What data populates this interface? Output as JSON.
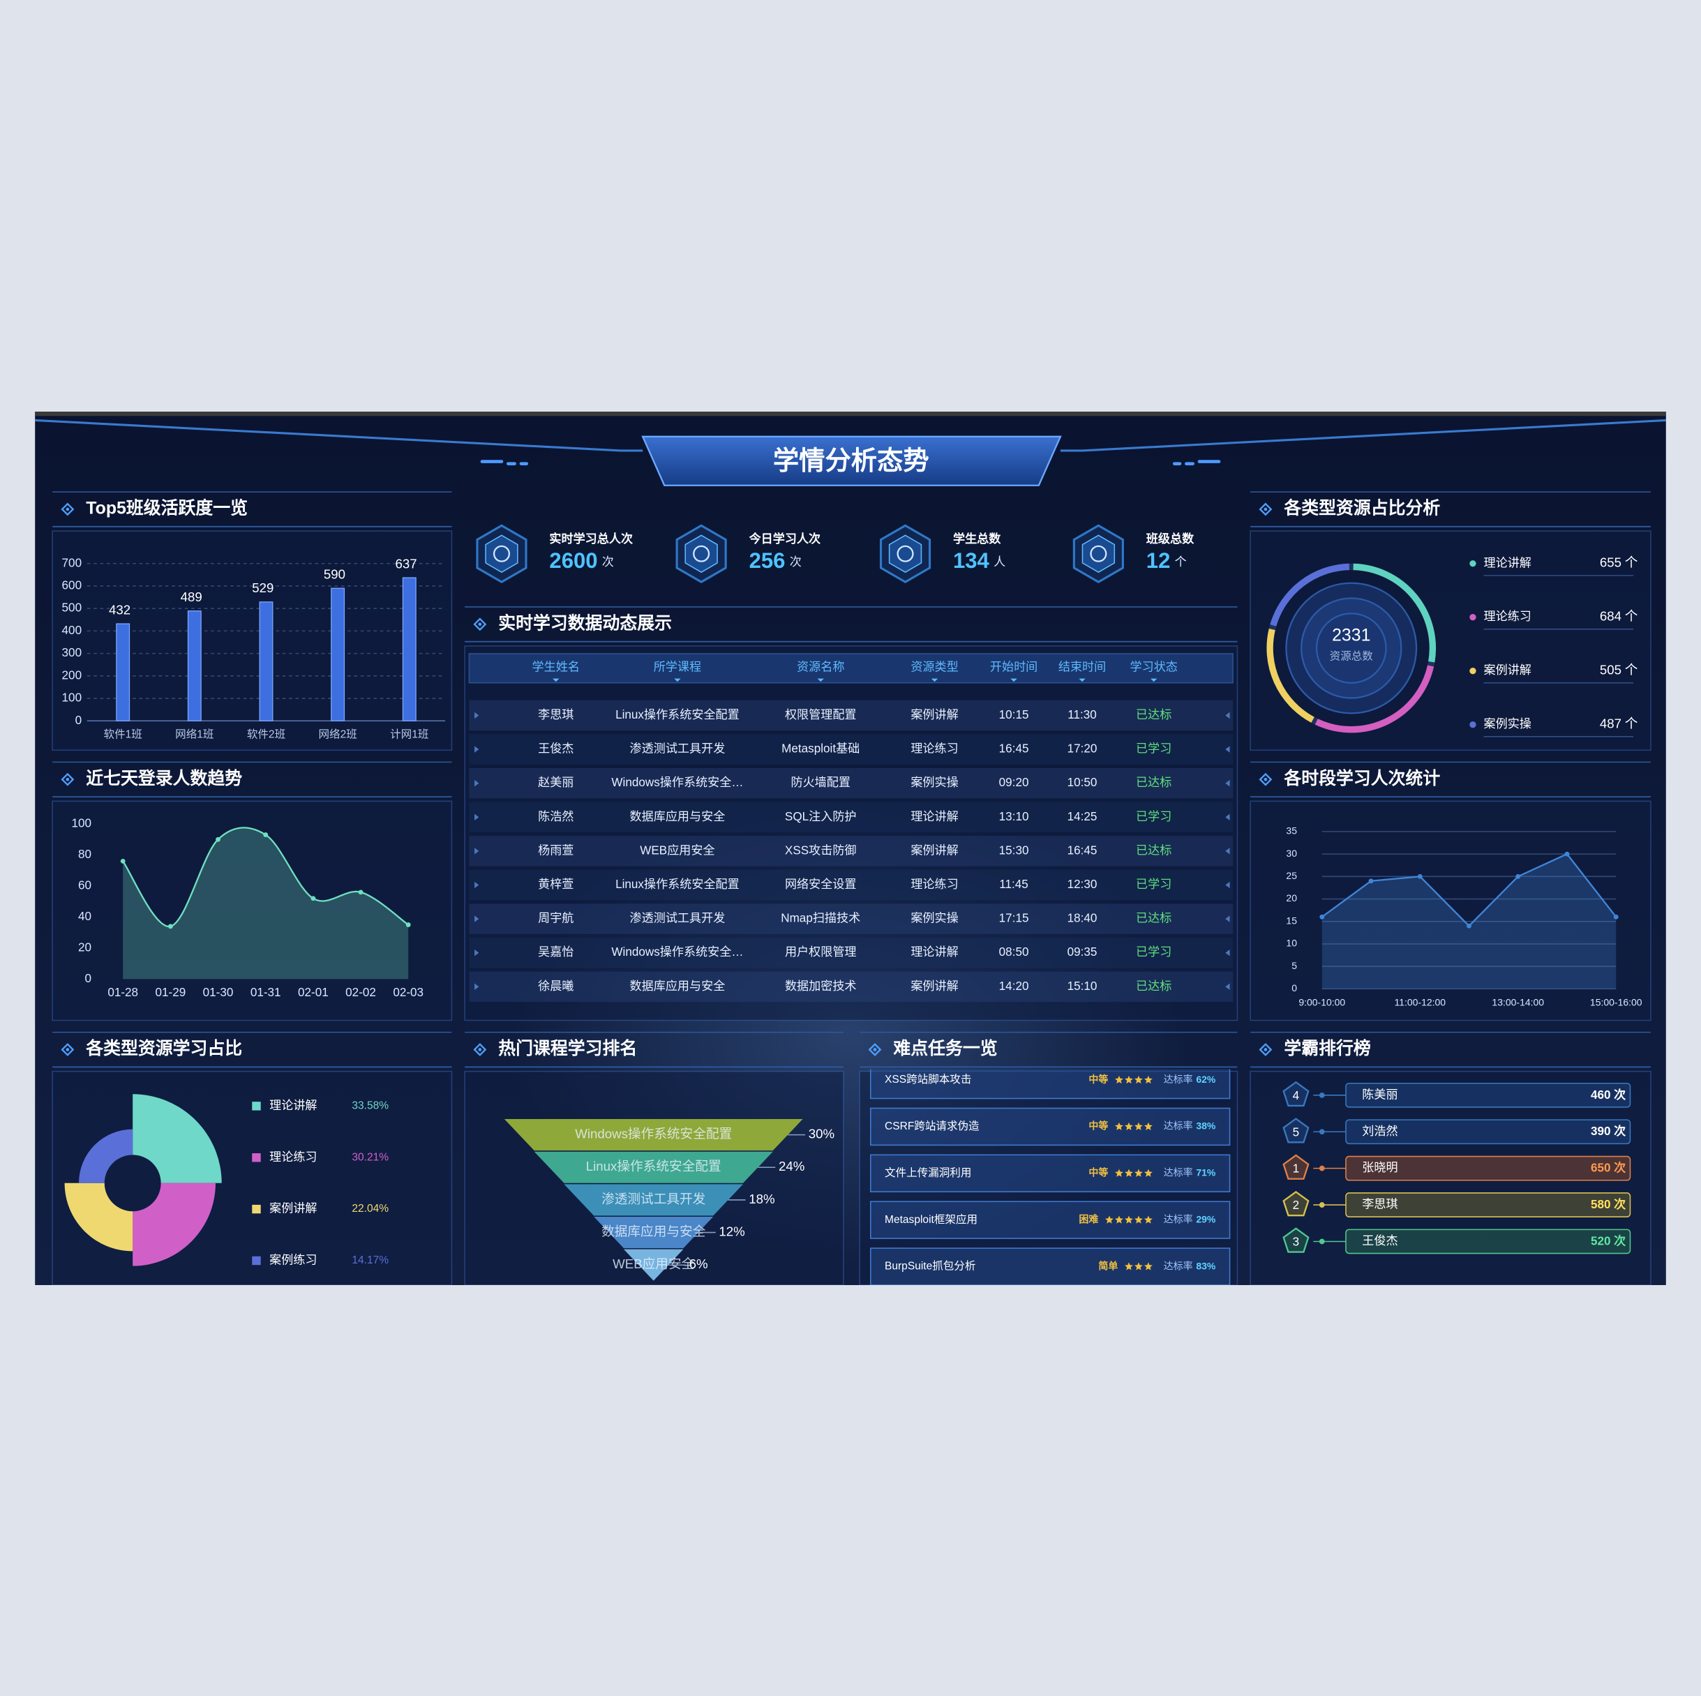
{
  "header": {
    "title": "学情分析态势"
  },
  "stats": [
    {
      "label": "实时学习总人次",
      "value": 2600,
      "unit": "次"
    },
    {
      "label": "今日学习人次",
      "value": 256,
      "unit": "次"
    },
    {
      "label": "学生总数",
      "value": 134,
      "unit": "人"
    },
    {
      "label": "班级总数",
      "value": 12,
      "unit": "个"
    }
  ],
  "table": {
    "title": "实时学习数据动态展示",
    "columns": [
      "学生姓名",
      "所学课程",
      "资源名称",
      "资源类型",
      "开始时间",
      "结束时间",
      "学习状态"
    ],
    "rows": [
      [
        "李思琪",
        "Linux操作系统安全配置",
        "权限管理配置",
        "案例讲解",
        "10:15",
        "11:30",
        "已达标"
      ],
      [
        "王俊杰",
        "渗透测试工具开发",
        "Metasploit基础",
        "理论练习",
        "16:45",
        "17:20",
        "已学习"
      ],
      [
        "赵美丽",
        "Windows操作系统安全…",
        "防火墙配置",
        "案例实操",
        "09:20",
        "10:50",
        "已达标"
      ],
      [
        "陈浩然",
        "数据库应用与安全",
        "SQL注入防护",
        "理论讲解",
        "13:10",
        "14:25",
        "已学习"
      ],
      [
        "杨雨萱",
        "WEB应用安全",
        "XSS攻击防御",
        "案例讲解",
        "15:30",
        "16:45",
        "已达标"
      ],
      [
        "黄梓萱",
        "Linux操作系统安全配置",
        "网络安全设置",
        "理论练习",
        "11:45",
        "12:30",
        "已学习"
      ],
      [
        "周宇航",
        "渗透测试工具开发",
        "Nmap扫描技术",
        "案例实操",
        "17:15",
        "18:40",
        "已达标"
      ],
      [
        "吴嘉怡",
        "Windows操作系统安全…",
        "用户权限管理",
        "理论讲解",
        "08:50",
        "09:35",
        "已学习"
      ],
      [
        "徐晨曦",
        "数据库应用与安全",
        "数据加密技术",
        "案例讲解",
        "14:20",
        "15:10",
        "已达标"
      ]
    ]
  },
  "tasks": {
    "title": "难点任务一览",
    "rate_label": "达标率",
    "items": [
      {
        "name": "XSS跨站脚本攻击",
        "level": "中等",
        "stars": 4,
        "rate": "62%"
      },
      {
        "name": "CSRF跨站请求伪造",
        "level": "中等",
        "stars": 4,
        "rate": "38%"
      },
      {
        "name": "文件上传漏洞利用",
        "level": "中等",
        "stars": 4,
        "rate": "71%"
      },
      {
        "name": "Metasploit框架应用",
        "level": "困难",
        "stars": 5,
        "rate": "29%"
      },
      {
        "name": "BurpSuite抓包分析",
        "level": "简单",
        "stars": 3,
        "rate": "83%"
      }
    ]
  },
  "ranking": {
    "title": "学霸排行榜",
    "unit": "次",
    "items": [
      {
        "rank": 4,
        "name": "陈美丽",
        "count": 460
      },
      {
        "rank": 5,
        "name": "刘浩然",
        "count": 390
      },
      {
        "rank": 1,
        "name": "张晓明",
        "count": 650
      },
      {
        "rank": 2,
        "name": "李思琪",
        "count": 580
      },
      {
        "rank": 3,
        "name": "王俊杰",
        "count": 520
      }
    ]
  },
  "chart_data": [
    {
      "type": "bar",
      "title": "Top5班级活跃度一览",
      "categories": [
        "软件1班",
        "网络1班",
        "软件2班",
        "网络2班",
        "计网1班"
      ],
      "values": [
        432,
        489,
        529,
        590,
        637
      ],
      "color": "#3e6fe0",
      "ylim": [
        0,
        700
      ],
      "yticks": [
        0,
        100,
        200,
        300,
        400,
        500,
        600,
        700
      ],
      "grid": true
    },
    {
      "type": "line",
      "title": "近七天登录人数趋势",
      "categories": [
        "01-28",
        "01-29",
        "01-30",
        "01-31",
        "02-01",
        "02-02",
        "02-03"
      ],
      "values": [
        76,
        34,
        90,
        93,
        52,
        56,
        35
      ],
      "color": "#6fe0c0",
      "smooth": true,
      "grid": false,
      "ylim": [
        0,
        100
      ],
      "yticks": [
        0,
        20,
        40,
        60,
        80,
        100
      ]
    },
    {
      "type": "rose",
      "title": "各类型资源学习占比",
      "categories": [
        "理论讲解",
        "理论练习",
        "案例讲解",
        "案例练习"
      ],
      "values": [
        33.58,
        30.21,
        22.04,
        14.17
      ],
      "value_labels": [
        "33.58%",
        "30.21%",
        "22.04%",
        "14.17%"
      ],
      "colors": [
        "#6fd8c8",
        "#d060c8",
        "#f0d870",
        "#5a70d8"
      ]
    },
    {
      "type": "funnel",
      "title": "热门课程学习排名",
      "categories": [
        "Windows操作系统安全配置",
        "Linux操作系统安全配置",
        "渗透测试工具开发",
        "数据库应用与安全",
        "WEB应用安全"
      ],
      "values": [
        30,
        24,
        18,
        12,
        6
      ],
      "value_labels": [
        "30%",
        "24%",
        "18%",
        "12%",
        "6%"
      ],
      "colors": [
        "#8fa83a",
        "#3fa890",
        "#3c90b8",
        "#4a86c8",
        "#78b4e0"
      ]
    },
    {
      "type": "donut",
      "title": "各类型资源占比分析",
      "categories": [
        "理论讲解",
        "理论练习",
        "案例讲解",
        "案例实操"
      ],
      "values": [
        655,
        684,
        505,
        487
      ],
      "unit": "个",
      "total": 2331,
      "total_label": "资源总数",
      "colors": [
        "#5fd3c0",
        "#d45fc0",
        "#f0d060",
        "#5a70d8"
      ]
    },
    {
      "type": "line",
      "title": "各时段学习人次统计",
      "categories": [
        "9:00-10:00",
        null,
        "11:00-12:00",
        null,
        "13:00-14:00",
        null,
        "15:00-16:00"
      ],
      "values": [
        16,
        24,
        25,
        14,
        25,
        30,
        16
      ],
      "color": "#3f86d8",
      "smooth": false,
      "grid": true,
      "ylim": [
        0,
        35
      ],
      "yticks": [
        0,
        5,
        10,
        15,
        20,
        25,
        30,
        35
      ]
    }
  ]
}
